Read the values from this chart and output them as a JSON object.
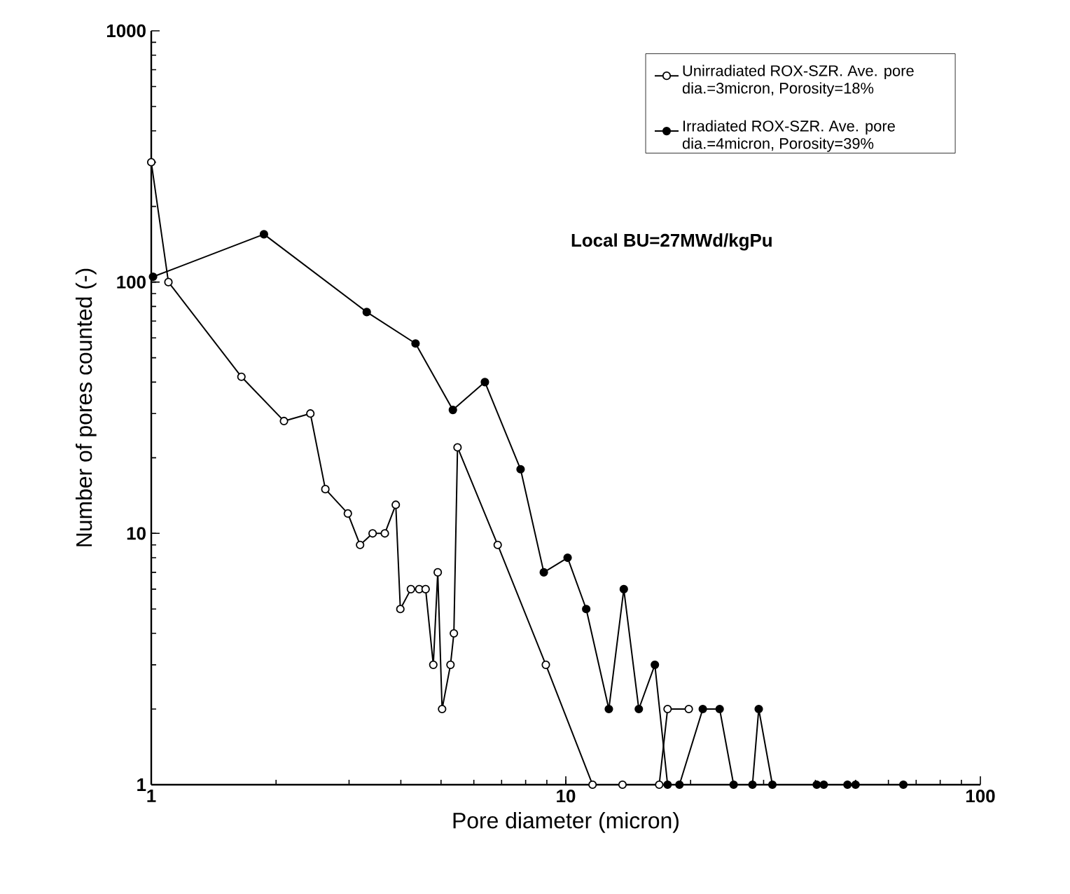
{
  "chart_data": {
    "type": "line",
    "xlabel": "Pore diameter (micron)",
    "ylabel": "Number of pores counted (-)",
    "log": "xy",
    "marker": "circle",
    "legend": "top right",
    "grid": false,
    "xlim": [
      1,
      100
    ],
    "xticks": [
      1,
      10,
      100
    ],
    "ylim": [
      1,
      1000
    ],
    "yticks": [
      1,
      10,
      100,
      1000
    ],
    "annotations": [
      "Local BU=27MWd/kgPu"
    ],
    "series": [
      {
        "name": "Unirradiated ROX-SZR. Ave. pore dia.=3micron, Porosity=18%",
        "color": "#000000",
        "colors": [
          "#ffffff",
          "#ffffff",
          "#ffffff",
          "#ffffff",
          "#ffffff",
          "#ffffff",
          "#ffffff",
          "#ffffff",
          "#ffffff",
          "#ffffff",
          "#ffffff",
          "#ffffff",
          "#ffffff",
          "#ffffff",
          "#ffffff",
          "#ffffff",
          "#ffffff",
          "#ffffff",
          "#ffffff",
          "#ffffff",
          "#ffffff",
          "#ffffff",
          "#ffffff",
          "#ffffff",
          "#ffffff",
          "#ffffff",
          "#ffffff",
          "#ffffff"
        ],
        "x": [
          1,
          1.1,
          1.65,
          2.09,
          2.42,
          2.63,
          2.98,
          3.19,
          3.42,
          3.66,
          3.89,
          3.99,
          4.23,
          4.43,
          4.59,
          4.79,
          4.91,
          5.03,
          5.27,
          5.37,
          5.48,
          6.85,
          8.95,
          11.6,
          13.7,
          16.8,
          17.6,
          19.8
        ],
        "values": [
          300,
          100,
          42,
          28,
          30,
          15,
          12,
          9,
          10,
          10,
          13,
          5,
          6,
          6,
          6,
          3,
          7,
          2,
          3,
          4,
          22,
          9,
          3,
          1,
          1,
          1,
          2,
          2
        ]
      },
      {
        "name": "Irradiated ROX-SZR. Ave. pore dia.=4micron, Porosity=39%",
        "color": "#000000",
        "x": [
          1.01,
          1.87,
          3.31,
          4.34,
          5.34,
          6.38,
          7.78,
          8.85,
          10.1,
          11.2,
          12.7,
          13.8,
          15.0,
          16.4,
          17.6,
          18.8,
          21.4,
          23.5,
          25.4,
          28.2,
          29.2,
          31.5,
          40.3,
          41.9,
          47.8,
          50.0,
          65.2
        ],
        "values": [
          105,
          155,
          76,
          57,
          31,
          40,
          18,
          7,
          8,
          5,
          2,
          6,
          2,
          3,
          1,
          1,
          2,
          2,
          1,
          1,
          2,
          1,
          1,
          1,
          1,
          1,
          1
        ]
      }
    ]
  }
}
